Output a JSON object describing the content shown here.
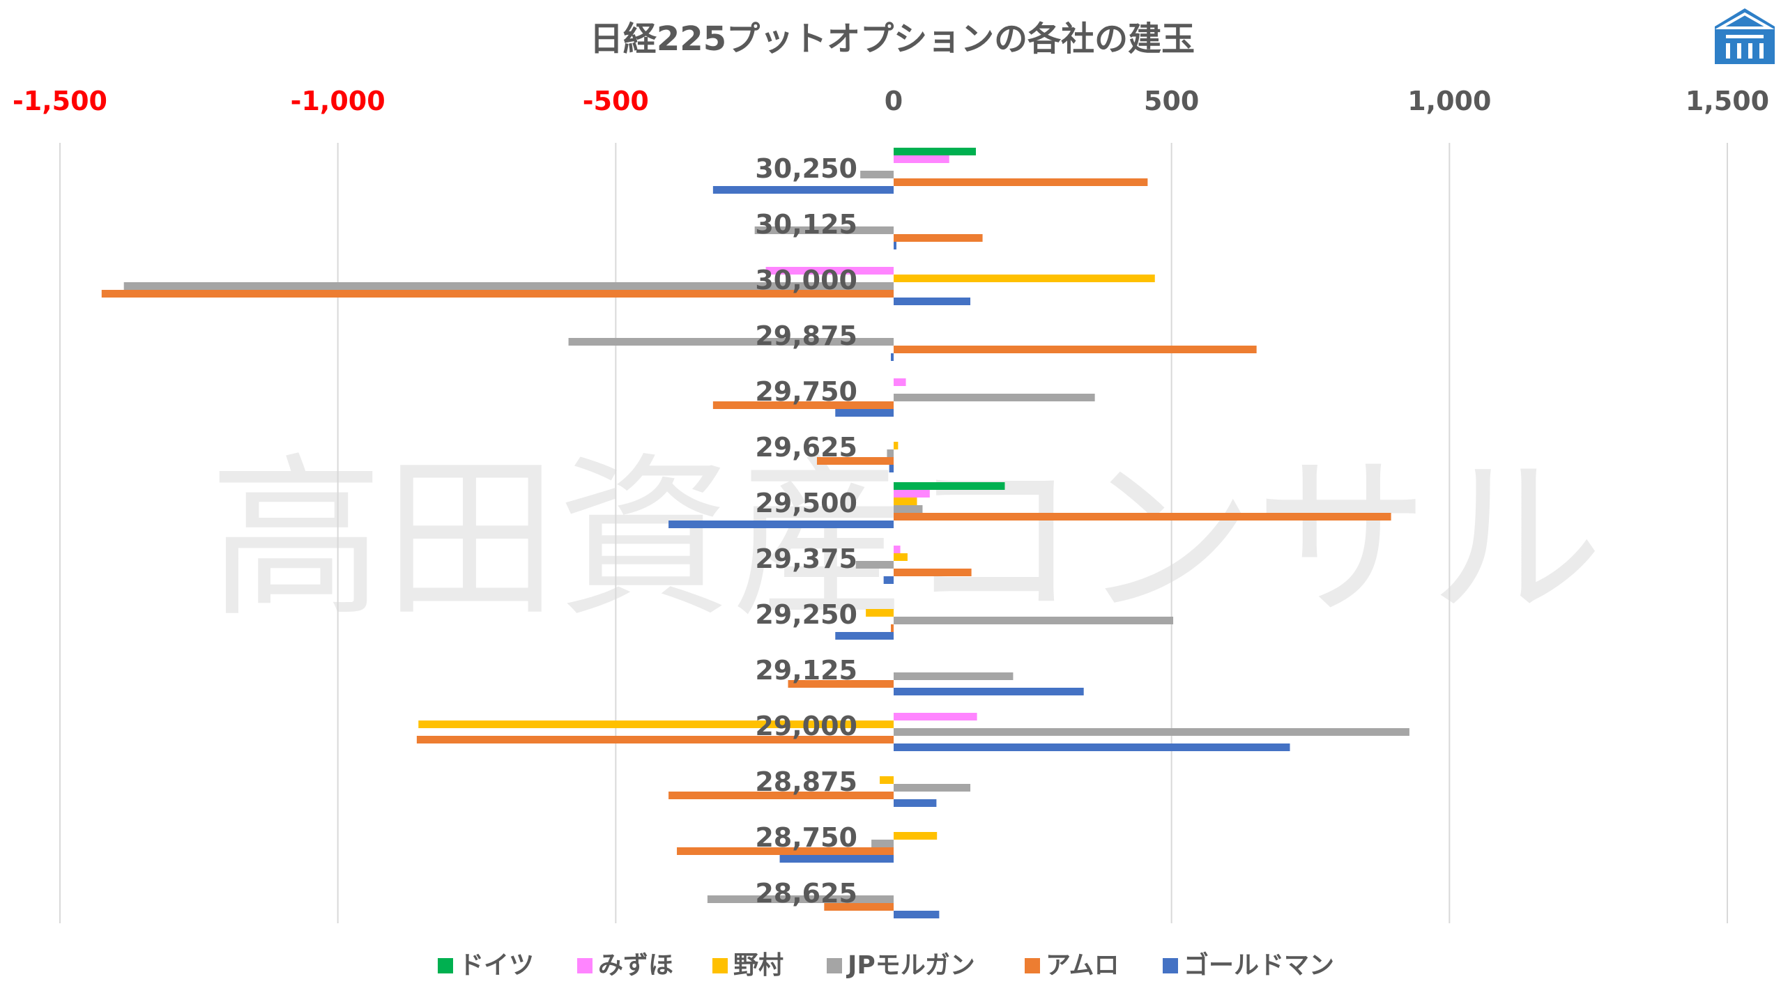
{
  "chart_data": {
    "type": "bar",
    "orientation": "horizontal",
    "title": "日経225プットオプションの各社の建玉",
    "xlim": [
      -1500,
      1500
    ],
    "x_ticks": [
      -1500,
      -1000,
      -500,
      0,
      500,
      1000,
      1500
    ],
    "x_tick_labels": [
      "-1,500",
      "-1,000",
      "-500",
      "0",
      "500",
      "1,000",
      "1,500"
    ],
    "negative_tick_color": "#ff0000",
    "grid": "vertical",
    "legend_position": "bottom",
    "categories": [
      "30,250",
      "30,125",
      "30,000",
      "29,875",
      "29,750",
      "29,625",
      "29,500",
      "29,375",
      "29,250",
      "29,125",
      "29,000",
      "28,875",
      "28,750",
      "28,625"
    ],
    "series": [
      {
        "name": "ドイツ",
        "color": "#00b050",
        "values": [
          148,
          0,
          0,
          0,
          0,
          0,
          200,
          0,
          0,
          0,
          0,
          0,
          0,
          0
        ]
      },
      {
        "name": "みずほ",
        "color": "#ff85ff",
        "values": [
          100,
          0,
          -230,
          0,
          22,
          0,
          65,
          12,
          0,
          0,
          150,
          0,
          0,
          0
        ]
      },
      {
        "name": "野村",
        "color": "#ffc000",
        "values": [
          0,
          0,
          470,
          0,
          0,
          8,
          42,
          25,
          -50,
          0,
          -855,
          -25,
          78,
          0
        ]
      },
      {
        "name": "JPモルガン",
        "color": "#a5a5a5",
        "values": [
          -60,
          -250,
          -1385,
          -585,
          362,
          -12,
          52,
          -68,
          503,
          215,
          928,
          138,
          -40,
          -335
        ]
      },
      {
        "name": "アムロ",
        "color": "#ed7d31",
        "values": [
          457,
          160,
          -1425,
          653,
          -325,
          -138,
          895,
          140,
          -5,
          -190,
          -858,
          -405,
          -390,
          -125
        ]
      },
      {
        "name": "ゴールドマン",
        "color": "#4472c4",
        "values": [
          -325,
          5,
          138,
          -5,
          -105,
          -8,
          -405,
          -18,
          -105,
          342,
          713,
          77,
          -205,
          82
        ]
      }
    ]
  },
  "watermark": "高田資産コンサル"
}
